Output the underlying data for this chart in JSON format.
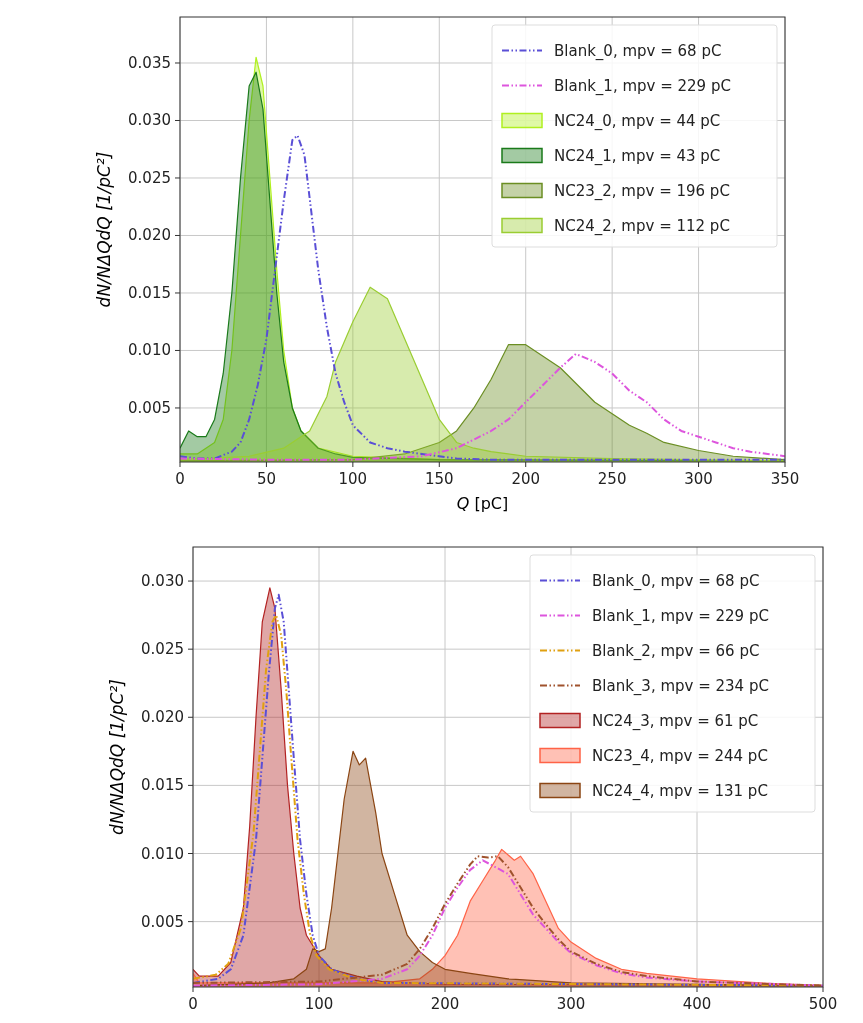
{
  "chart_data": [
    {
      "type": "area",
      "xlabel": "Q [pC]",
      "ylabel": "dN/NΔQdQ [1/pC²]",
      "xlim": [
        0,
        350
      ],
      "ylim": [
        0.0003,
        0.039
      ],
      "xticks": [
        0,
        50,
        100,
        150,
        200,
        250,
        300,
        350
      ],
      "yticks": [
        {
          "value": 0.005,
          "label": "0.005"
        },
        {
          "value": 0.01,
          "label": "0.010"
        },
        {
          "value": 0.015,
          "label": "0.015"
        },
        {
          "value": 0.02,
          "label": "0.020"
        },
        {
          "value": 0.025,
          "label": "0.025"
        },
        {
          "value": 0.03,
          "label": "0.030"
        },
        {
          "value": 0.035,
          "label": "0.035"
        }
      ],
      "grid": true,
      "legend": "top right",
      "series": [
        {
          "name": "Blank_0, mpv = 68 pC",
          "type": "line",
          "line_style": "dashed",
          "color": "#5a4fd6",
          "x": [
            0,
            10,
            20,
            30,
            35,
            40,
            45,
            50,
            55,
            60,
            65,
            68,
            72,
            76,
            80,
            85,
            90,
            95,
            100,
            110,
            120,
            130,
            140,
            150,
            160,
            180,
            350
          ],
          "values": [
            0.0008,
            0.0006,
            0.0006,
            0.0012,
            0.002,
            0.004,
            0.007,
            0.011,
            0.017,
            0.023,
            0.0283,
            0.0287,
            0.027,
            0.022,
            0.017,
            0.012,
            0.008,
            0.0055,
            0.0035,
            0.002,
            0.0015,
            0.0012,
            0.001,
            0.0008,
            0.0006,
            0.0005,
            0.0005
          ]
        },
        {
          "name": "Blank_1, mpv = 229 pC",
          "type": "line",
          "line_style": "dashed",
          "color": "#dd55dd",
          "x": [
            0,
            50,
            100,
            140,
            160,
            180,
            190,
            200,
            210,
            220,
            229,
            240,
            250,
            260,
            270,
            280,
            290,
            300,
            310,
            320,
            330,
            340,
            350
          ],
          "values": [
            0.0006,
            0.0005,
            0.0005,
            0.0008,
            0.0015,
            0.003,
            0.004,
            0.0055,
            0.007,
            0.0085,
            0.0097,
            0.009,
            0.008,
            0.0065,
            0.0055,
            0.004,
            0.003,
            0.0025,
            0.002,
            0.0015,
            0.0012,
            0.001,
            0.0008
          ]
        },
        {
          "name": "NC24_0, mpv = 44 pC",
          "color": "#b0f020",
          "x": [
            0,
            10,
            20,
            25,
            30,
            35,
            40,
            44,
            48,
            52,
            56,
            60,
            65,
            70,
            80,
            100,
            150,
            350
          ],
          "values": [
            0.001,
            0.001,
            0.002,
            0.004,
            0.01,
            0.02,
            0.03,
            0.0355,
            0.033,
            0.025,
            0.017,
            0.01,
            0.005,
            0.003,
            0.0015,
            0.0008,
            0.0005,
            0.0004
          ]
        },
        {
          "name": "NC24_1, mpv = 43 pC",
          "color": "#1a7a1a",
          "x": [
            0,
            5,
            10,
            15,
            20,
            25,
            30,
            35,
            40,
            44,
            48,
            52,
            56,
            60,
            65,
            70,
            80,
            90,
            100,
            150,
            350
          ],
          "values": [
            0.0015,
            0.003,
            0.0025,
            0.0025,
            0.004,
            0.008,
            0.015,
            0.025,
            0.033,
            0.0342,
            0.031,
            0.023,
            0.015,
            0.009,
            0.005,
            0.003,
            0.0015,
            0.001,
            0.0007,
            0.0005,
            0.0004
          ]
        },
        {
          "name": "NC23_2, mpv = 196 pC",
          "color": "#6b8e23",
          "x": [
            0,
            100,
            130,
            150,
            160,
            170,
            180,
            190,
            200,
            210,
            220,
            230,
            240,
            250,
            260,
            270,
            280,
            300,
            320,
            350
          ],
          "values": [
            0.0004,
            0.0005,
            0.001,
            0.002,
            0.003,
            0.005,
            0.0075,
            0.0105,
            0.0105,
            0.0095,
            0.0085,
            0.007,
            0.0055,
            0.0045,
            0.0035,
            0.0028,
            0.002,
            0.0013,
            0.0008,
            0.0005
          ]
        },
        {
          "name": "NC24_2, mpv = 112 pC",
          "color": "#9acd32",
          "x": [
            0,
            40,
            60,
            75,
            85,
            90,
            100,
            110,
            115,
            120,
            130,
            140,
            150,
            160,
            170,
            180,
            200,
            250,
            350
          ],
          "values": [
            0.0005,
            0.0008,
            0.0015,
            0.003,
            0.006,
            0.009,
            0.0125,
            0.0155,
            0.015,
            0.0145,
            0.011,
            0.0075,
            0.004,
            0.002,
            0.0015,
            0.0012,
            0.0008,
            0.0006,
            0.0004
          ]
        }
      ]
    },
    {
      "type": "area",
      "ylabel": "dN/NΔQdQ [1/pC²]",
      "xlim": [
        0,
        500
      ],
      "ylim": [
        0.0002,
        0.0325
      ],
      "xticks": [
        0,
        100,
        200,
        300,
        400,
        500
      ],
      "yticks": [
        {
          "value": 0.005,
          "label": "0.005"
        },
        {
          "value": 0.01,
          "label": "0.010"
        },
        {
          "value": 0.015,
          "label": "0.015"
        },
        {
          "value": 0.02,
          "label": "0.020"
        },
        {
          "value": 0.025,
          "label": "0.025"
        },
        {
          "value": 0.03,
          "label": "0.030"
        }
      ],
      "grid": true,
      "legend": "top right",
      "series": [
        {
          "name": "Blank_0, mpv = 68 pC",
          "type": "line",
          "line_style": "dashed",
          "color": "#5a4fd6",
          "x": [
            0,
            20,
            30,
            40,
            50,
            55,
            60,
            65,
            68,
            72,
            76,
            80,
            85,
            90,
            95,
            100,
            110,
            130,
            150,
            500
          ],
          "values": [
            0.0005,
            0.0008,
            0.0015,
            0.004,
            0.011,
            0.017,
            0.023,
            0.028,
            0.029,
            0.027,
            0.022,
            0.017,
            0.011,
            0.007,
            0.004,
            0.0025,
            0.0015,
            0.0008,
            0.0005,
            0.0003
          ]
        },
        {
          "name": "Blank_1, mpv = 229 pC",
          "type": "line",
          "line_style": "dashed",
          "color": "#dd55dd",
          "x": [
            0,
            100,
            150,
            170,
            180,
            190,
            200,
            210,
            220,
            230,
            240,
            250,
            260,
            270,
            280,
            290,
            300,
            320,
            340,
            360,
            400,
            500
          ],
          "values": [
            0.0003,
            0.0004,
            0.0008,
            0.0015,
            0.0025,
            0.004,
            0.006,
            0.0075,
            0.0088,
            0.0095,
            0.009,
            0.0085,
            0.007,
            0.0055,
            0.0045,
            0.0035,
            0.0027,
            0.0018,
            0.0012,
            0.0009,
            0.0006,
            0.0003
          ]
        },
        {
          "name": "Blank_2, mpv = 66 pC",
          "type": "line",
          "line_style": "dashed",
          "color": "#e0a010",
          "x": [
            0,
            18,
            28,
            38,
            48,
            53,
            58,
            63,
            66,
            70,
            74,
            78,
            83,
            88,
            93,
            98,
            108,
            128,
            150,
            500
          ],
          "values": [
            0.0008,
            0.0011,
            0.0019,
            0.0045,
            0.0115,
            0.0175,
            0.0235,
            0.027,
            0.0275,
            0.026,
            0.022,
            0.017,
            0.011,
            0.007,
            0.004,
            0.0025,
            0.0015,
            0.0008,
            0.0005,
            0.0003
          ]
        },
        {
          "name": "Blank_3, mpv = 234 pC",
          "type": "line",
          "line_style": "dashed",
          "color": "#a0522d",
          "x": [
            0,
            100,
            150,
            170,
            180,
            190,
            200,
            210,
            220,
            226,
            234,
            242,
            250,
            260,
            270,
            280,
            290,
            300,
            320,
            340,
            360,
            400,
            500
          ],
          "values": [
            0.0005,
            0.0006,
            0.0011,
            0.0019,
            0.003,
            0.0045,
            0.0063,
            0.0078,
            0.0092,
            0.0098,
            0.0097,
            0.0098,
            0.009,
            0.0075,
            0.006,
            0.0048,
            0.0037,
            0.0028,
            0.0019,
            0.0013,
            0.001,
            0.0006,
            0.0003
          ]
        },
        {
          "name": "NC24_3, mpv = 61 pC",
          "color": "#b22222",
          "x": [
            0,
            5,
            20,
            30,
            40,
            45,
            50,
            55,
            61,
            65,
            70,
            75,
            80,
            85,
            90,
            100,
            110,
            130,
            150,
            200,
            500
          ],
          "values": [
            0.0015,
            0.001,
            0.001,
            0.002,
            0.006,
            0.012,
            0.02,
            0.027,
            0.0295,
            0.028,
            0.022,
            0.015,
            0.01,
            0.006,
            0.004,
            0.0025,
            0.0015,
            0.001,
            0.0006,
            0.0004,
            0.0003
          ]
        },
        {
          "name": "NC23_4, mpv = 244 pC",
          "color": "#ff6347",
          "x": [
            0,
            5,
            150,
            180,
            190,
            200,
            210,
            220,
            230,
            240,
            245,
            255,
            260,
            270,
            280,
            290,
            300,
            320,
            340,
            360,
            400,
            450,
            500
          ],
          "values": [
            0.0012,
            0.0005,
            0.0005,
            0.0008,
            0.0015,
            0.0025,
            0.004,
            0.0065,
            0.008,
            0.0095,
            0.0103,
            0.0095,
            0.0098,
            0.0085,
            0.0065,
            0.0045,
            0.0035,
            0.0023,
            0.0015,
            0.0012,
            0.0008,
            0.0005,
            0.0003
          ]
        },
        {
          "name": "NC24_4, mpv = 131 pC",
          "color": "#8b4513",
          "x": [
            0,
            60,
            80,
            90,
            95,
            100,
            105,
            110,
            115,
            120,
            127,
            132,
            137,
            145,
            150,
            160,
            170,
            180,
            190,
            200,
            220,
            250,
            300,
            500
          ],
          "values": [
            0.0003,
            0.0005,
            0.0008,
            0.0015,
            0.003,
            0.0028,
            0.003,
            0.006,
            0.01,
            0.014,
            0.0175,
            0.0165,
            0.017,
            0.013,
            0.01,
            0.007,
            0.004,
            0.0028,
            0.002,
            0.0015,
            0.0012,
            0.0008,
            0.0005,
            0.0003
          ]
        }
      ]
    }
  ]
}
